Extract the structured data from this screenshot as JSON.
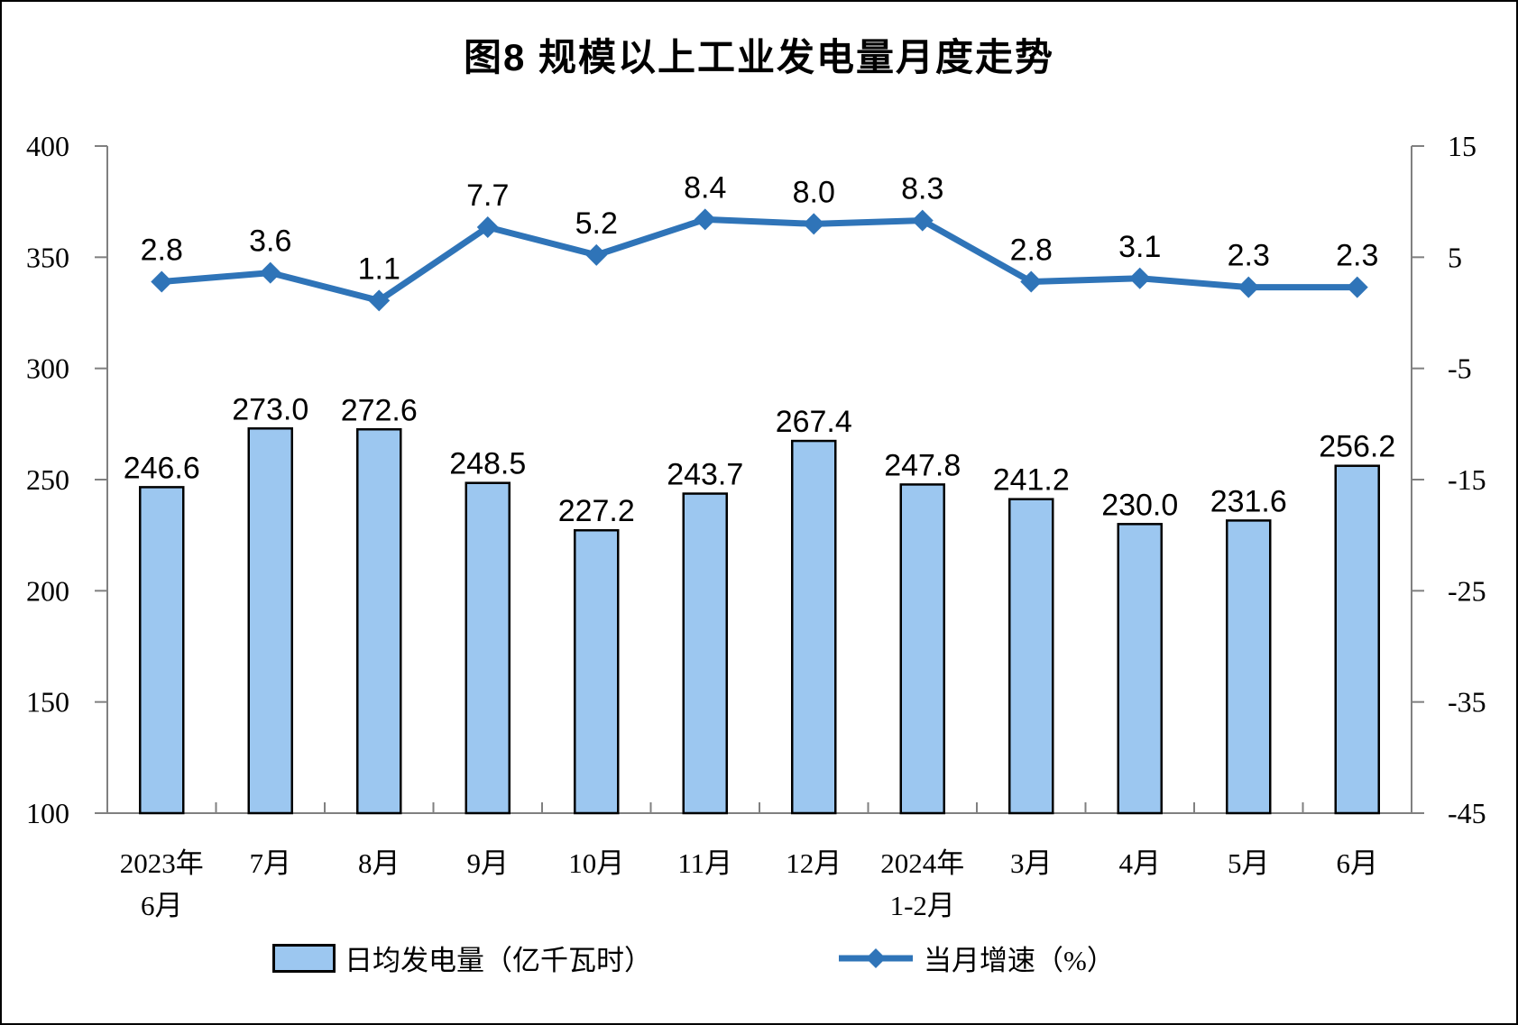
{
  "title": "图8 规模以上工业发电量月度走势",
  "chart_data": {
    "type": "bar+line combo",
    "title": "图8 规模以上工业发电量月度走势",
    "categories": [
      [
        "2023年",
        "6月"
      ],
      [
        "7月"
      ],
      [
        "8月"
      ],
      [
        "9月"
      ],
      [
        "10月"
      ],
      [
        "11月"
      ],
      [
        "12月"
      ],
      [
        "2024年",
        "1-2月"
      ],
      [
        "3月"
      ],
      [
        "4月"
      ],
      [
        "5月"
      ],
      [
        "6月"
      ]
    ],
    "series": [
      {
        "name": "日均发电量（亿千瓦时）",
        "type": "bar",
        "axis": "left",
        "values": [
          246.6,
          273.0,
          272.6,
          248.5,
          227.2,
          243.7,
          267.4,
          247.8,
          241.2,
          230.0,
          231.6,
          256.2
        ]
      },
      {
        "name": "当月增速（%）",
        "type": "line",
        "axis": "right",
        "values": [
          2.8,
          3.6,
          1.1,
          7.7,
          5.2,
          8.4,
          8.0,
          8.3,
          2.8,
          3.1,
          2.3,
          2.3
        ]
      }
    ],
    "left_axis": {
      "min": 100,
      "max": 400,
      "tick_interval": 50,
      "tick_labels": [
        "400",
        "350",
        "300",
        "250",
        "200",
        "150",
        "100"
      ]
    },
    "right_axis": {
      "min": -45,
      "max": 15,
      "tick_interval": 10,
      "tick_labels": [
        "15",
        "5",
        "-5",
        "-15",
        "-25",
        "-35",
        "-45"
      ]
    },
    "grid": "off",
    "legend_position": "bottom",
    "data_label_decimals": 1,
    "colors": {
      "bar_fill": "#9CC7F0",
      "bar_stroke": "#000000",
      "line": "#2F74B8",
      "axis": "#808080",
      "text": "#000000",
      "background": "#FFFFFF"
    }
  }
}
